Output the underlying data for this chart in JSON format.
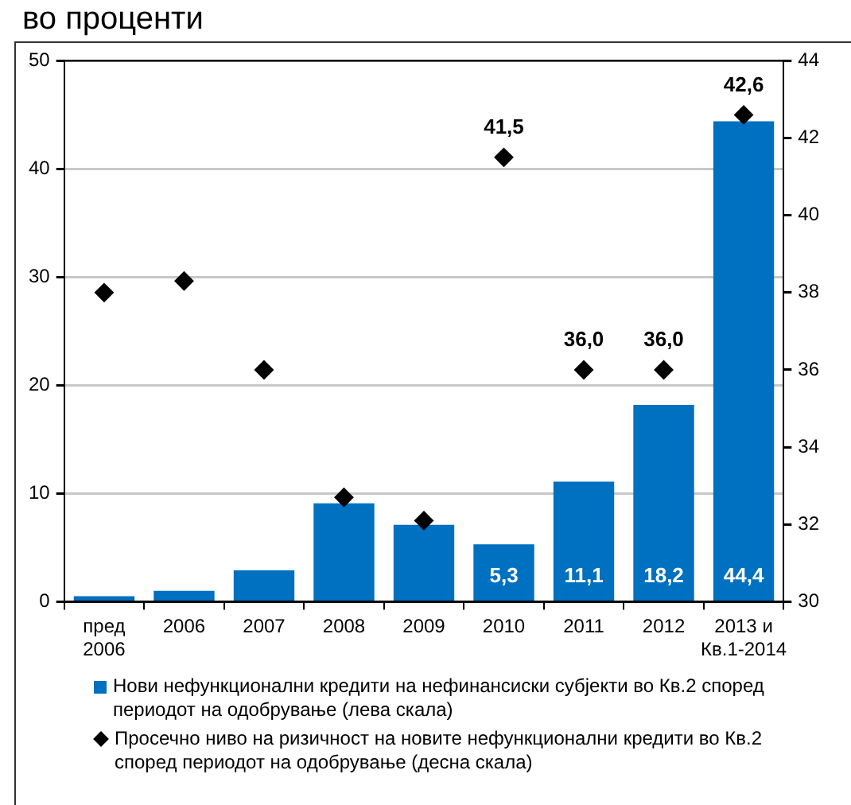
{
  "chart_data": {
    "type": "bar",
    "title": "во проценти",
    "categories": [
      "пред 2006",
      "2006",
      "2007",
      "2008",
      "2009",
      "2010",
      "2011",
      "2012",
      "2013 и Кв.1-2014"
    ],
    "series": [
      {
        "name": "Нови нефункционални кредити на нефинансиски субјекти во Кв.2 според периодот на одобрување (лева скала)",
        "color": "#0070c0",
        "values": [
          0.5,
          1.0,
          2.9,
          9.1,
          7.1,
          5.3,
          11.1,
          18.2,
          44.4
        ],
        "value_labels": [
          null,
          null,
          null,
          null,
          null,
          "5,3",
          "11,1",
          "18,2",
          "44,4"
        ]
      },
      {
        "name": "Просечно ниво на ризичност на новите нефункционални кредити во Кв.2 според периодот на одобрување (десна скала)",
        "type": "scatter",
        "axis": "y2",
        "color": "#000000",
        "marker": "diamond",
        "values": [
          38.0,
          38.3,
          36.0,
          32.7,
          32.1,
          41.5,
          36.0,
          36.0,
          42.6
        ],
        "value_labels": [
          null,
          null,
          null,
          null,
          null,
          "41,5",
          "36,0",
          "36,0",
          "42,6"
        ]
      }
    ],
    "ylim": [
      0,
      50
    ],
    "yticks": [
      0,
      10,
      20,
      30,
      40,
      50
    ],
    "y2lim": [
      30,
      44
    ],
    "y2ticks": [
      30,
      32,
      34,
      36,
      38,
      40,
      42,
      44
    ],
    "grid": "y",
    "legend": "bottom"
  }
}
